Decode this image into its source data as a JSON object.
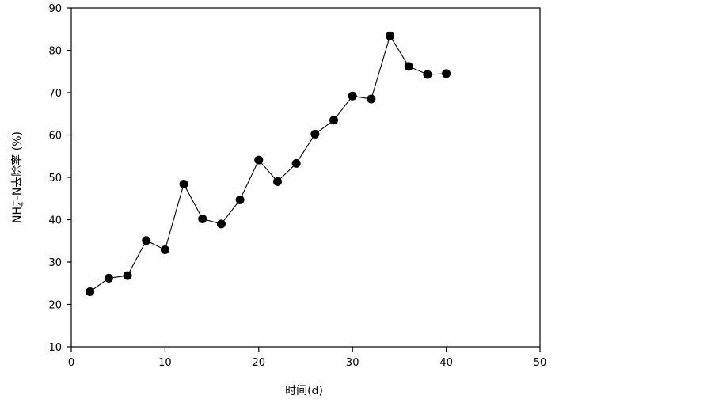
{
  "chart_data": {
    "type": "line",
    "xlabel": "时间(d)",
    "ylabel": {
      "prefix": "NH",
      "subscript": "4",
      "superscript": "+",
      "suffix": "-N去除率 (%)"
    },
    "xlim": [
      0,
      50
    ],
    "ylim": [
      10,
      90
    ],
    "xticks": [
      0,
      10,
      20,
      30,
      40,
      50
    ],
    "yticks": [
      10,
      20,
      30,
      40,
      50,
      60,
      70,
      80,
      90
    ],
    "grid": false,
    "marker": "filled-circle",
    "line_color": "#000000",
    "series": [
      {
        "x": [
          2,
          4,
          6,
          8,
          10,
          12,
          14,
          16,
          18,
          20,
          22,
          24,
          26,
          28,
          30,
          32,
          34,
          36,
          38,
          40
        ],
        "values": [
          23,
          26.2,
          26.8,
          35.1,
          32.9,
          48.4,
          40.2,
          39,
          44.7,
          54.1,
          49,
          53.3,
          60.2,
          63.5,
          69.2,
          68.5,
          83.4,
          76.2,
          74.3,
          74.5
        ]
      }
    ]
  }
}
